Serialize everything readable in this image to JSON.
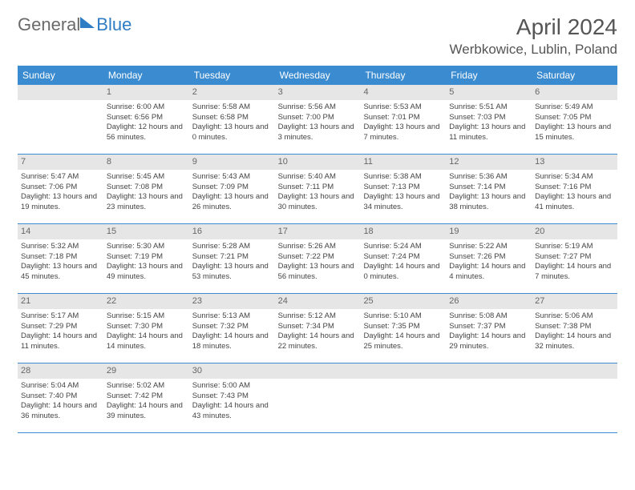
{
  "logo": {
    "part1": "General",
    "part2": "Blue"
  },
  "title": "April 2024",
  "location": "Werbkowice, Lublin, Poland",
  "colors": {
    "header_bg": "#3b8bd0",
    "header_text": "#ffffff",
    "daynum_bg": "#e6e6e6",
    "daynum_text": "#666666",
    "row_border": "#3b8bd0",
    "body_text": "#444444",
    "title_text": "#555555",
    "logo_gray": "#6a6a6a",
    "logo_blue": "#2e7cc4"
  },
  "day_headers": [
    "Sunday",
    "Monday",
    "Tuesday",
    "Wednesday",
    "Thursday",
    "Friday",
    "Saturday"
  ],
  "weeks": [
    [
      {
        "n": "",
        "sunrise": "",
        "sunset": "",
        "daylight": ""
      },
      {
        "n": "1",
        "sunrise": "6:00 AM",
        "sunset": "6:56 PM",
        "daylight": "12 hours and 56 minutes."
      },
      {
        "n": "2",
        "sunrise": "5:58 AM",
        "sunset": "6:58 PM",
        "daylight": "13 hours and 0 minutes."
      },
      {
        "n": "3",
        "sunrise": "5:56 AM",
        "sunset": "7:00 PM",
        "daylight": "13 hours and 3 minutes."
      },
      {
        "n": "4",
        "sunrise": "5:53 AM",
        "sunset": "7:01 PM",
        "daylight": "13 hours and 7 minutes."
      },
      {
        "n": "5",
        "sunrise": "5:51 AM",
        "sunset": "7:03 PM",
        "daylight": "13 hours and 11 minutes."
      },
      {
        "n": "6",
        "sunrise": "5:49 AM",
        "sunset": "7:05 PM",
        "daylight": "13 hours and 15 minutes."
      }
    ],
    [
      {
        "n": "7",
        "sunrise": "5:47 AM",
        "sunset": "7:06 PM",
        "daylight": "13 hours and 19 minutes."
      },
      {
        "n": "8",
        "sunrise": "5:45 AM",
        "sunset": "7:08 PM",
        "daylight": "13 hours and 23 minutes."
      },
      {
        "n": "9",
        "sunrise": "5:43 AM",
        "sunset": "7:09 PM",
        "daylight": "13 hours and 26 minutes."
      },
      {
        "n": "10",
        "sunrise": "5:40 AM",
        "sunset": "7:11 PM",
        "daylight": "13 hours and 30 minutes."
      },
      {
        "n": "11",
        "sunrise": "5:38 AM",
        "sunset": "7:13 PM",
        "daylight": "13 hours and 34 minutes."
      },
      {
        "n": "12",
        "sunrise": "5:36 AM",
        "sunset": "7:14 PM",
        "daylight": "13 hours and 38 minutes."
      },
      {
        "n": "13",
        "sunrise": "5:34 AM",
        "sunset": "7:16 PM",
        "daylight": "13 hours and 41 minutes."
      }
    ],
    [
      {
        "n": "14",
        "sunrise": "5:32 AM",
        "sunset": "7:18 PM",
        "daylight": "13 hours and 45 minutes."
      },
      {
        "n": "15",
        "sunrise": "5:30 AM",
        "sunset": "7:19 PM",
        "daylight": "13 hours and 49 minutes."
      },
      {
        "n": "16",
        "sunrise": "5:28 AM",
        "sunset": "7:21 PM",
        "daylight": "13 hours and 53 minutes."
      },
      {
        "n": "17",
        "sunrise": "5:26 AM",
        "sunset": "7:22 PM",
        "daylight": "13 hours and 56 minutes."
      },
      {
        "n": "18",
        "sunrise": "5:24 AM",
        "sunset": "7:24 PM",
        "daylight": "14 hours and 0 minutes."
      },
      {
        "n": "19",
        "sunrise": "5:22 AM",
        "sunset": "7:26 PM",
        "daylight": "14 hours and 4 minutes."
      },
      {
        "n": "20",
        "sunrise": "5:19 AM",
        "sunset": "7:27 PM",
        "daylight": "14 hours and 7 minutes."
      }
    ],
    [
      {
        "n": "21",
        "sunrise": "5:17 AM",
        "sunset": "7:29 PM",
        "daylight": "14 hours and 11 minutes."
      },
      {
        "n": "22",
        "sunrise": "5:15 AM",
        "sunset": "7:30 PM",
        "daylight": "14 hours and 14 minutes."
      },
      {
        "n": "23",
        "sunrise": "5:13 AM",
        "sunset": "7:32 PM",
        "daylight": "14 hours and 18 minutes."
      },
      {
        "n": "24",
        "sunrise": "5:12 AM",
        "sunset": "7:34 PM",
        "daylight": "14 hours and 22 minutes."
      },
      {
        "n": "25",
        "sunrise": "5:10 AM",
        "sunset": "7:35 PM",
        "daylight": "14 hours and 25 minutes."
      },
      {
        "n": "26",
        "sunrise": "5:08 AM",
        "sunset": "7:37 PM",
        "daylight": "14 hours and 29 minutes."
      },
      {
        "n": "27",
        "sunrise": "5:06 AM",
        "sunset": "7:38 PM",
        "daylight": "14 hours and 32 minutes."
      }
    ],
    [
      {
        "n": "28",
        "sunrise": "5:04 AM",
        "sunset": "7:40 PM",
        "daylight": "14 hours and 36 minutes."
      },
      {
        "n": "29",
        "sunrise": "5:02 AM",
        "sunset": "7:42 PM",
        "daylight": "14 hours and 39 minutes."
      },
      {
        "n": "30",
        "sunrise": "5:00 AM",
        "sunset": "7:43 PM",
        "daylight": "14 hours and 43 minutes."
      },
      {
        "n": "",
        "sunrise": "",
        "sunset": "",
        "daylight": ""
      },
      {
        "n": "",
        "sunrise": "",
        "sunset": "",
        "daylight": ""
      },
      {
        "n": "",
        "sunrise": "",
        "sunset": "",
        "daylight": ""
      },
      {
        "n": "",
        "sunrise": "",
        "sunset": "",
        "daylight": ""
      }
    ]
  ],
  "labels": {
    "sunrise_prefix": "Sunrise: ",
    "sunset_prefix": "Sunset: ",
    "daylight_prefix": "Daylight: "
  }
}
